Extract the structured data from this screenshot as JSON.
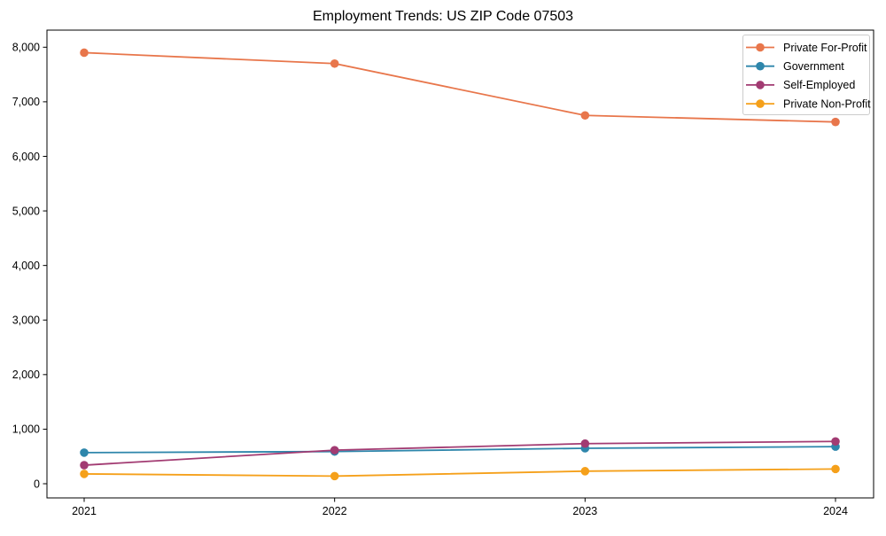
{
  "chart_data": {
    "type": "line",
    "title": "Employment Trends: US ZIP Code 07503",
    "xlabel": "",
    "ylabel": "",
    "x": [
      2021,
      2022,
      2023,
      2024
    ],
    "xtick_labels": [
      "2021",
      "2022",
      "2023",
      "2024"
    ],
    "ytick_labels": [
      "0",
      "1,000",
      "2,000",
      "3,000",
      "4,000",
      "5,000",
      "6,000",
      "7,000",
      "8,000"
    ],
    "ylim": [
      0,
      8000
    ],
    "ytick_step": 1000,
    "grid": false,
    "marker": "circle",
    "legend_position": "upper right",
    "series": [
      {
        "name": "Private For-Profit",
        "color": "#E8764B",
        "values": [
          7900,
          7700,
          6750,
          6630
        ]
      },
      {
        "name": "Government",
        "color": "#2E86AB",
        "values": [
          570,
          590,
          650,
          680
        ]
      },
      {
        "name": "Self-Employed",
        "color": "#A23B72",
        "values": [
          340,
          615,
          735,
          775
        ]
      },
      {
        "name": "Private Non-Profit",
        "color": "#F5A01A",
        "values": [
          180,
          140,
          230,
          270
        ]
      }
    ]
  }
}
